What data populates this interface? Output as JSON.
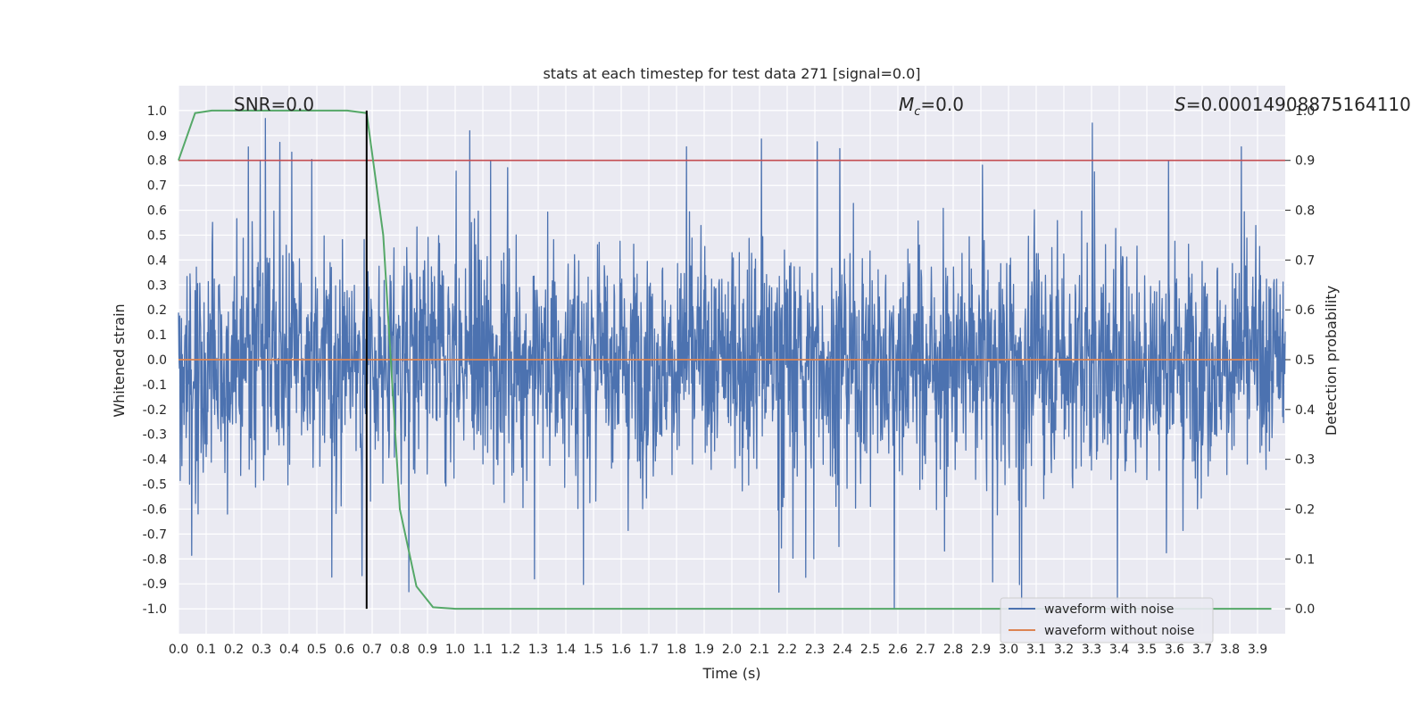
{
  "chart_data": {
    "type": "line",
    "title": "stats at each timestep for test data 271 [signal=0.0]",
    "xlabel": "Time (s)",
    "ylabel": "Whitened strain",
    "y2label": "Detection probability",
    "xlim": [
      0.0,
      4.0
    ],
    "ylim": [
      -1.1,
      1.1
    ],
    "y2lim": [
      -0.05,
      1.05
    ],
    "x_ticks": [
      "0.0",
      "0.1",
      "0.2",
      "0.3",
      "0.4",
      "0.5",
      "0.6",
      "0.7",
      "0.8",
      "0.9",
      "1.0",
      "1.1",
      "1.2",
      "1.3",
      "1.4",
      "1.5",
      "1.6",
      "1.7",
      "1.8",
      "1.9",
      "2.0",
      "2.1",
      "2.2",
      "2.3",
      "2.4",
      "2.5",
      "2.6",
      "2.7",
      "2.8",
      "2.9",
      "3.0",
      "3.1",
      "3.2",
      "3.3",
      "3.4",
      "3.5",
      "3.6",
      "3.7",
      "3.8",
      "3.9"
    ],
    "y_ticks": [
      "1.0",
      "0.9",
      "0.8",
      "0.7",
      "0.6",
      "0.5",
      "0.4",
      "0.3",
      "0.2",
      "0.1",
      "0.0",
      "-0.1",
      "-0.2",
      "-0.3",
      "-0.4",
      "-0.5",
      "-0.6",
      "-0.7",
      "-0.8",
      "-0.9",
      "-1.0"
    ],
    "y2_ticks": [
      "1.0",
      "0.9",
      "0.8",
      "0.7",
      "0.6",
      "0.5",
      "0.4",
      "0.3",
      "0.2",
      "0.1",
      "0.0"
    ],
    "grid": true,
    "legend_position": "lower-right",
    "annotations": {
      "snr": "SNR=0.0",
      "mc_symbol": "M",
      "mc_sub": "c",
      "mc_value": "=0.0",
      "s_symbol": "S",
      "s_value": "=0.00014908875164110"
    },
    "series": [
      {
        "name": "waveform with noise",
        "color": "#4c72b0",
        "axis": "left",
        "kind": "noise",
        "amplitude_range": [
          -1.0,
          1.0
        ]
      },
      {
        "name": "waveform without noise",
        "color": "#dd8452",
        "axis": "left",
        "x": [
          0.0,
          4.0
        ],
        "y": [
          0.0,
          0.0
        ]
      },
      {
        "axis": "right",
        "color": "#55a868",
        "x": [
          0.0,
          0.06,
          0.12,
          0.18,
          0.25,
          0.31,
          0.37,
          0.43,
          0.49,
          0.55,
          0.61,
          0.68,
          0.74,
          0.8,
          0.86,
          0.92,
          1.0,
          2.0,
          3.0,
          3.95
        ],
        "y": [
          0.9,
          0.995,
          1.0,
          1.0,
          1.0,
          1.0,
          1.0,
          1.0,
          1.0,
          1.0,
          1.0,
          0.995,
          0.75,
          0.2,
          0.045,
          0.003,
          0.0,
          0.0,
          0.0,
          0.0
        ]
      },
      {
        "axis": "right",
        "color": "#c44e52",
        "kind": "threshold",
        "y": 0.9
      },
      {
        "axis": "left",
        "color": "#000000",
        "kind": "marker",
        "x": 0.68
      }
    ]
  }
}
